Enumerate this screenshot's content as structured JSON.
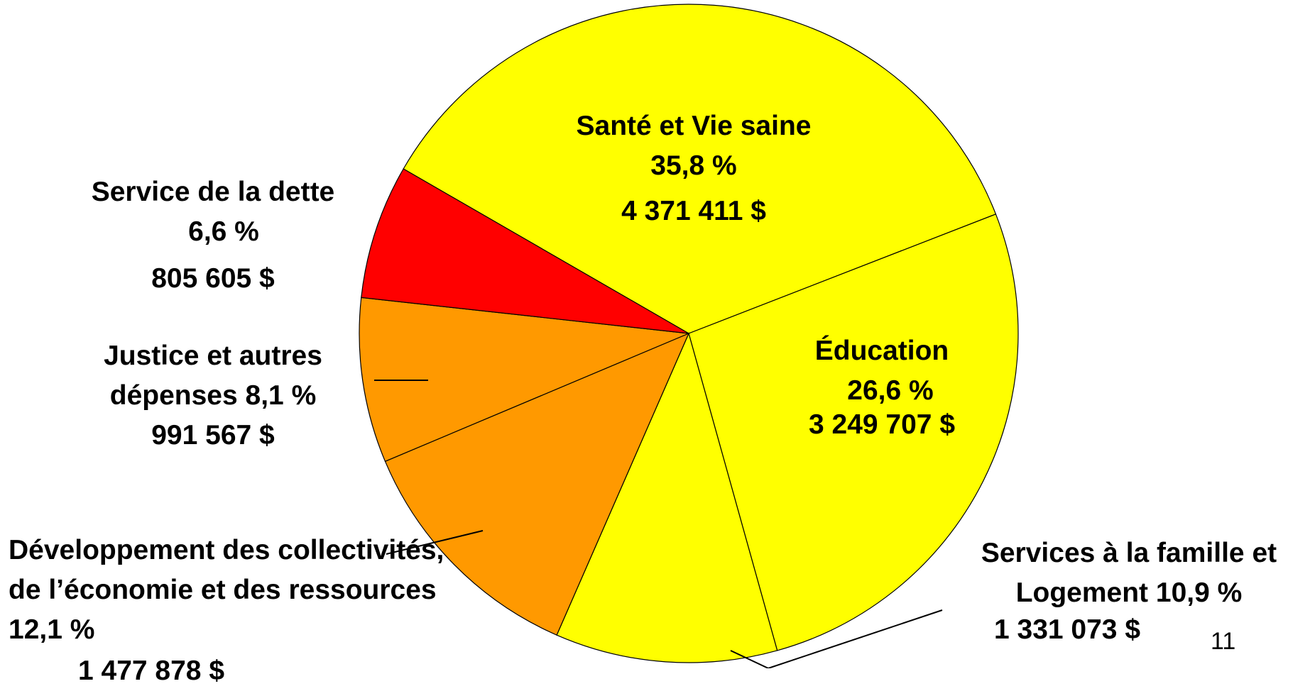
{
  "chart_data": {
    "type": "pie",
    "categories": [
      "Santé et Vie saine",
      "Éducation",
      "Services à la famille et Logement",
      "Développement des collectivités, de l’économie et des ressources",
      "Justice et autres dépenses",
      "Service de la dette"
    ],
    "values": [
      35.8,
      26.6,
      10.9,
      12.1,
      8.1,
      6.6
    ],
    "value_labels": [
      "35,8 %",
      "26,6 %",
      "10,9 %",
      "12,1 %",
      "8,1 %",
      "6,6 %"
    ],
    "amounts": [
      4371411,
      3249707,
      1331073,
      1477878,
      991567,
      805605
    ],
    "amount_labels": [
      "4 371 411 $",
      "3 249 707 $",
      "1 331 073 $",
      "1 477 878 $",
      "991 567 $",
      "805 605 $"
    ],
    "colors": [
      "#ffff00",
      "#ffff00",
      "#ffff00",
      "#ff9900",
      "#ff9900",
      "#ff0000"
    ]
  },
  "page_number": "11"
}
